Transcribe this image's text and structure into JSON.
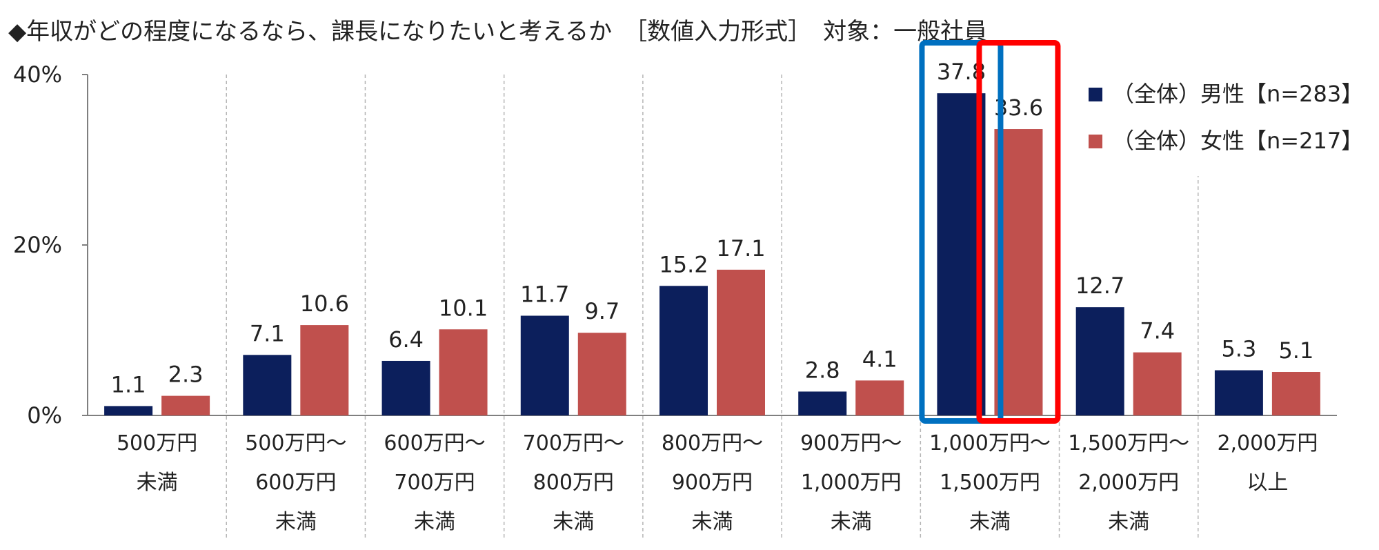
{
  "title": "◆年収がどの程度になるなら、課長になりたいと考えるか　［数値入力形式］　対象：一般社員",
  "chart_data": {
    "type": "bar",
    "title": "◆年収がどの程度になるなら、課長になりたいと考えるか　［数値入力形式］　対象：一般社員",
    "xlabel": "",
    "ylabel": "",
    "ylim": [
      0,
      40
    ],
    "y_ticks": [
      "0%",
      "20%",
      "40%"
    ],
    "y_tick_values": [
      0,
      20,
      40
    ],
    "categories": [
      [
        "500万円",
        "未満"
      ],
      [
        "500万円～",
        "600万円",
        "未満"
      ],
      [
        "600万円～",
        "700万円",
        "未満"
      ],
      [
        "700万円～",
        "800万円",
        "未満"
      ],
      [
        "800万円～",
        "900万円",
        "未満"
      ],
      [
        "900万円～",
        "1,000万円",
        "未満"
      ],
      [
        "1,000万円～",
        "1,500万円",
        "未満"
      ],
      [
        "1,500万円～",
        "2,000万円",
        "未満"
      ],
      [
        "2,000万円",
        "以上"
      ]
    ],
    "series": [
      {
        "name": "（全体）男性【n=283】",
        "color": "#0c1f5c",
        "values": [
          1.1,
          7.1,
          6.4,
          11.7,
          15.2,
          2.8,
          37.8,
          12.7,
          5.3
        ]
      },
      {
        "name": "（全体）女性【n=217】",
        "color": "#c0504d",
        "values": [
          2.3,
          10.6,
          10.1,
          9.7,
          17.1,
          4.1,
          33.6,
          7.4,
          5.1
        ]
      }
    ],
    "legend": "top-right",
    "highlights": [
      {
        "category_index": 6,
        "series_index": 0,
        "color": "#0070c0"
      },
      {
        "category_index": 6,
        "series_index": 1,
        "color": "#ff0000"
      }
    ]
  }
}
